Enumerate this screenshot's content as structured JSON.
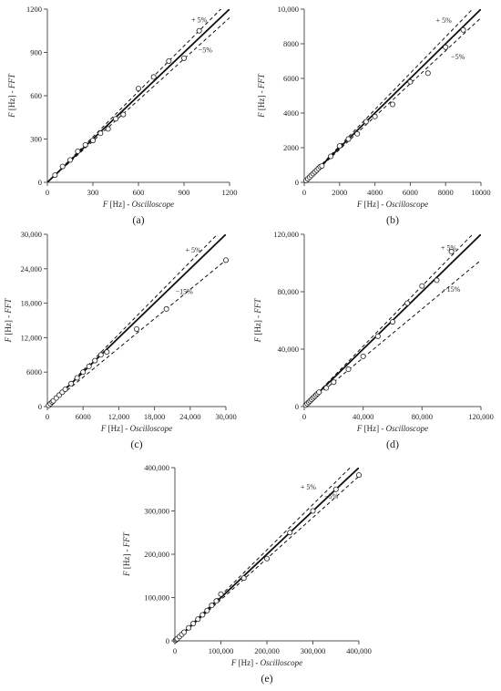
{
  "chart_data": [
    {
      "id": "a",
      "type": "scatter",
      "panel_label": "(a)",
      "xlabel_var": "F",
      "xlabel_unit": " [Hz] - ",
      "xlabel_name": "Oscilloscope",
      "ylabel_var": "F",
      "ylabel_unit": " [Hz] - ",
      "ylabel_name": "FFT",
      "xlim": [
        0,
        1200
      ],
      "ylim": [
        0,
        1200
      ],
      "xticks": [
        0,
        300,
        600,
        900,
        1200
      ],
      "yticks": [
        0,
        300,
        600,
        900,
        1200
      ],
      "xtick_labels": [
        "0",
        "300",
        "600",
        "900",
        "1200"
      ],
      "ytick_labels": [
        "0",
        "300",
        "600",
        "900",
        "1200"
      ],
      "grid": false,
      "reference_lines": [
        {
          "label": "+ 5%",
          "slope": 1.05,
          "style": "dashed",
          "label_at": [
            1000,
            1110
          ]
        },
        {
          "label": "",
          "slope": 1.0,
          "style": "solid"
        },
        {
          "label": "−5%",
          "slope": 0.95,
          "style": "dashed",
          "label_at": [
            1040,
            900
          ]
        }
      ],
      "series": [
        {
          "x": [
            50,
            100,
            150,
            200,
            250,
            300,
            350,
            400,
            450,
            500,
            600,
            700,
            800,
            900,
            1000
          ],
          "y": [
            50,
            110,
            155,
            215,
            260,
            290,
            340,
            370,
            440,
            470,
            650,
            730,
            840,
            860,
            1050
          ]
        }
      ]
    },
    {
      "id": "b",
      "type": "scatter",
      "panel_label": "(b)",
      "xlabel_var": "F",
      "xlabel_unit": " [Hz] - ",
      "xlabel_name": "Oscilloscope",
      "ylabel_var": "F",
      "ylabel_unit": " [Hz] - ",
      "ylabel_name": "FFT",
      "xlim": [
        0,
        10000
      ],
      "ylim": [
        0,
        10000
      ],
      "xticks": [
        0,
        2000,
        4000,
        6000,
        8000,
        10000
      ],
      "yticks": [
        0,
        2000,
        4000,
        6000,
        8000,
        10000
      ],
      "xtick_labels": [
        "0",
        "2000",
        "4000",
        "6000",
        "8000",
        "10000"
      ],
      "ytick_labels": [
        "0",
        "2000",
        "4000",
        "6000",
        "8000",
        "10,000"
      ],
      "grid": false,
      "reference_lines": [
        {
          "label": "+ 5%",
          "slope": 1.05,
          "style": "dashed",
          "label_at": [
            7900,
            9200
          ]
        },
        {
          "label": "",
          "slope": 1.0,
          "style": "solid"
        },
        {
          "label": "−5%",
          "slope": 0.95,
          "style": "dashed",
          "label_at": [
            8700,
            7100
          ]
        }
      ],
      "series": [
        {
          "x": [
            100,
            200,
            300,
            400,
            500,
            600,
            700,
            800,
            900,
            1000,
            1500,
            2000,
            2500,
            3000,
            3500,
            4000,
            5000,
            6000,
            7000,
            8000,
            9000
          ],
          "y": [
            100,
            200,
            300,
            400,
            500,
            600,
            700,
            800,
            900,
            950,
            1500,
            2100,
            2500,
            2800,
            3500,
            3800,
            4500,
            5800,
            6300,
            7800,
            8800
          ]
        }
      ]
    },
    {
      "id": "c",
      "type": "scatter",
      "panel_label": "(c)",
      "xlabel_var": "F",
      "xlabel_unit": " [Hz] - ",
      "xlabel_name": "Oscilloscope",
      "ylabel_var": "F",
      "ylabel_unit": " [Hz] - ",
      "ylabel_name": "FFT",
      "xlim": [
        0,
        30000
      ],
      "ylim": [
        0,
        30000
      ],
      "xticks": [
        0,
        6000,
        12000,
        18000,
        24000,
        30000
      ],
      "yticks": [
        0,
        6000,
        12000,
        18000,
        24000,
        30000
      ],
      "xtick_labels": [
        "0",
        "6000",
        "12,000",
        "18,000",
        "24,000",
        "30,000"
      ],
      "ytick_labels": [
        "0",
        "6000",
        "12,000",
        "18,000",
        "24,000",
        "30,000"
      ],
      "grid": false,
      "reference_lines": [
        {
          "label": "+ 5%",
          "slope": 1.05,
          "style": "dashed",
          "label_at": [
            24500,
            26800
          ]
        },
        {
          "label": "",
          "slope": 1.0,
          "style": "solid"
        },
        {
          "label": "−15%",
          "slope": 0.85,
          "style": "dashed",
          "label_at": [
            23000,
            19600
          ]
        }
      ],
      "series": [
        {
          "x": [
            200,
            500,
            800,
            1000,
            1500,
            2000,
            2500,
            3000,
            4000,
            5000,
            6000,
            7000,
            8000,
            9000,
            10000,
            15000,
            20000,
            30000
          ],
          "y": [
            200,
            500,
            800,
            1000,
            1500,
            2000,
            2500,
            3000,
            4000,
            5000,
            6000,
            7000,
            8000,
            9000,
            9500,
            13500,
            17000,
            25500
          ]
        }
      ]
    },
    {
      "id": "d",
      "type": "scatter",
      "panel_label": "(d)",
      "xlabel_var": "F",
      "xlabel_unit": " [Hz] - ",
      "xlabel_name": "Oscilloscope",
      "ylabel_var": "F",
      "ylabel_unit": " [Hz] - ",
      "ylabel_name": "FFT",
      "xlim": [
        0,
        120000
      ],
      "ylim": [
        0,
        120000
      ],
      "xticks": [
        0,
        40000,
        80000,
        120000
      ],
      "yticks": [
        0,
        40000,
        80000,
        120000
      ],
      "xtick_labels": [
        "0",
        "40,000",
        "80,000",
        "120,000"
      ],
      "ytick_labels": [
        "0",
        "40,000",
        "80,000",
        "120,000"
      ],
      "grid": false,
      "reference_lines": [
        {
          "label": "+ 5%",
          "slope": 1.05,
          "style": "dashed",
          "label_at": [
            98000,
            109000
          ]
        },
        {
          "label": "",
          "slope": 1.0,
          "style": "solid"
        },
        {
          "label": "−15%",
          "slope": 0.85,
          "style": "dashed",
          "label_at": [
            100000,
            80000
          ]
        }
      ],
      "series": [
        {
          "x": [
            1000,
            2000,
            3000,
            4000,
            5000,
            6000,
            7000,
            8000,
            9000,
            10000,
            15000,
            20000,
            30000,
            40000,
            50000,
            60000,
            70000,
            80000,
            90000,
            100000
          ],
          "y": [
            1000,
            2000,
            3000,
            4000,
            5000,
            6000,
            7000,
            8000,
            9000,
            10000,
            13000,
            17000,
            26000,
            35000,
            49000,
            59000,
            72000,
            84000,
            88000,
            108000
          ]
        }
      ]
    },
    {
      "id": "e",
      "type": "scatter",
      "panel_label": "(e)",
      "xlabel_var": "F",
      "xlabel_unit": " [Hz] - ",
      "xlabel_name": "Oscilloscope",
      "ylabel_var": "F",
      "ylabel_unit": " [Hz] - ",
      "ylabel_name": "FFT",
      "xlim": [
        0,
        400000
      ],
      "ylim": [
        0,
        400000
      ],
      "xticks": [
        0,
        100000,
        200000,
        300000,
        400000
      ],
      "yticks": [
        0,
        100000,
        200000,
        300000,
        400000
      ],
      "xtick_labels": [
        "0",
        "100,000",
        "200,000",
        "300,000",
        "400,000"
      ],
      "ytick_labels": [
        "0",
        "100,000",
        "200,000",
        "300,000",
        "400,000"
      ],
      "grid": false,
      "reference_lines": [
        {
          "label": "+ 5%",
          "slope": 1.05,
          "style": "dashed",
          "label_at": [
            290000,
            350000
          ]
        },
        {
          "label": "",
          "slope": 1.0,
          "style": "solid"
        },
        {
          "label": "−5%",
          "slope": 0.95,
          "style": "dashed",
          "label_at": [
            340000,
            328000
          ]
        }
      ],
      "series": [
        {
          "x": [
            1000,
            3000,
            5000,
            10000,
            15000,
            20000,
            30000,
            40000,
            50000,
            60000,
            70000,
            80000,
            90000,
            100000,
            150000,
            200000,
            250000,
            300000,
            350000,
            400000
          ],
          "y": [
            1000,
            3000,
            5000,
            10000,
            15000,
            20000,
            30000,
            40000,
            50000,
            60000,
            70000,
            82000,
            92000,
            108000,
            145000,
            190000,
            250000,
            300000,
            350000,
            383000
          ]
        }
      ]
    }
  ]
}
